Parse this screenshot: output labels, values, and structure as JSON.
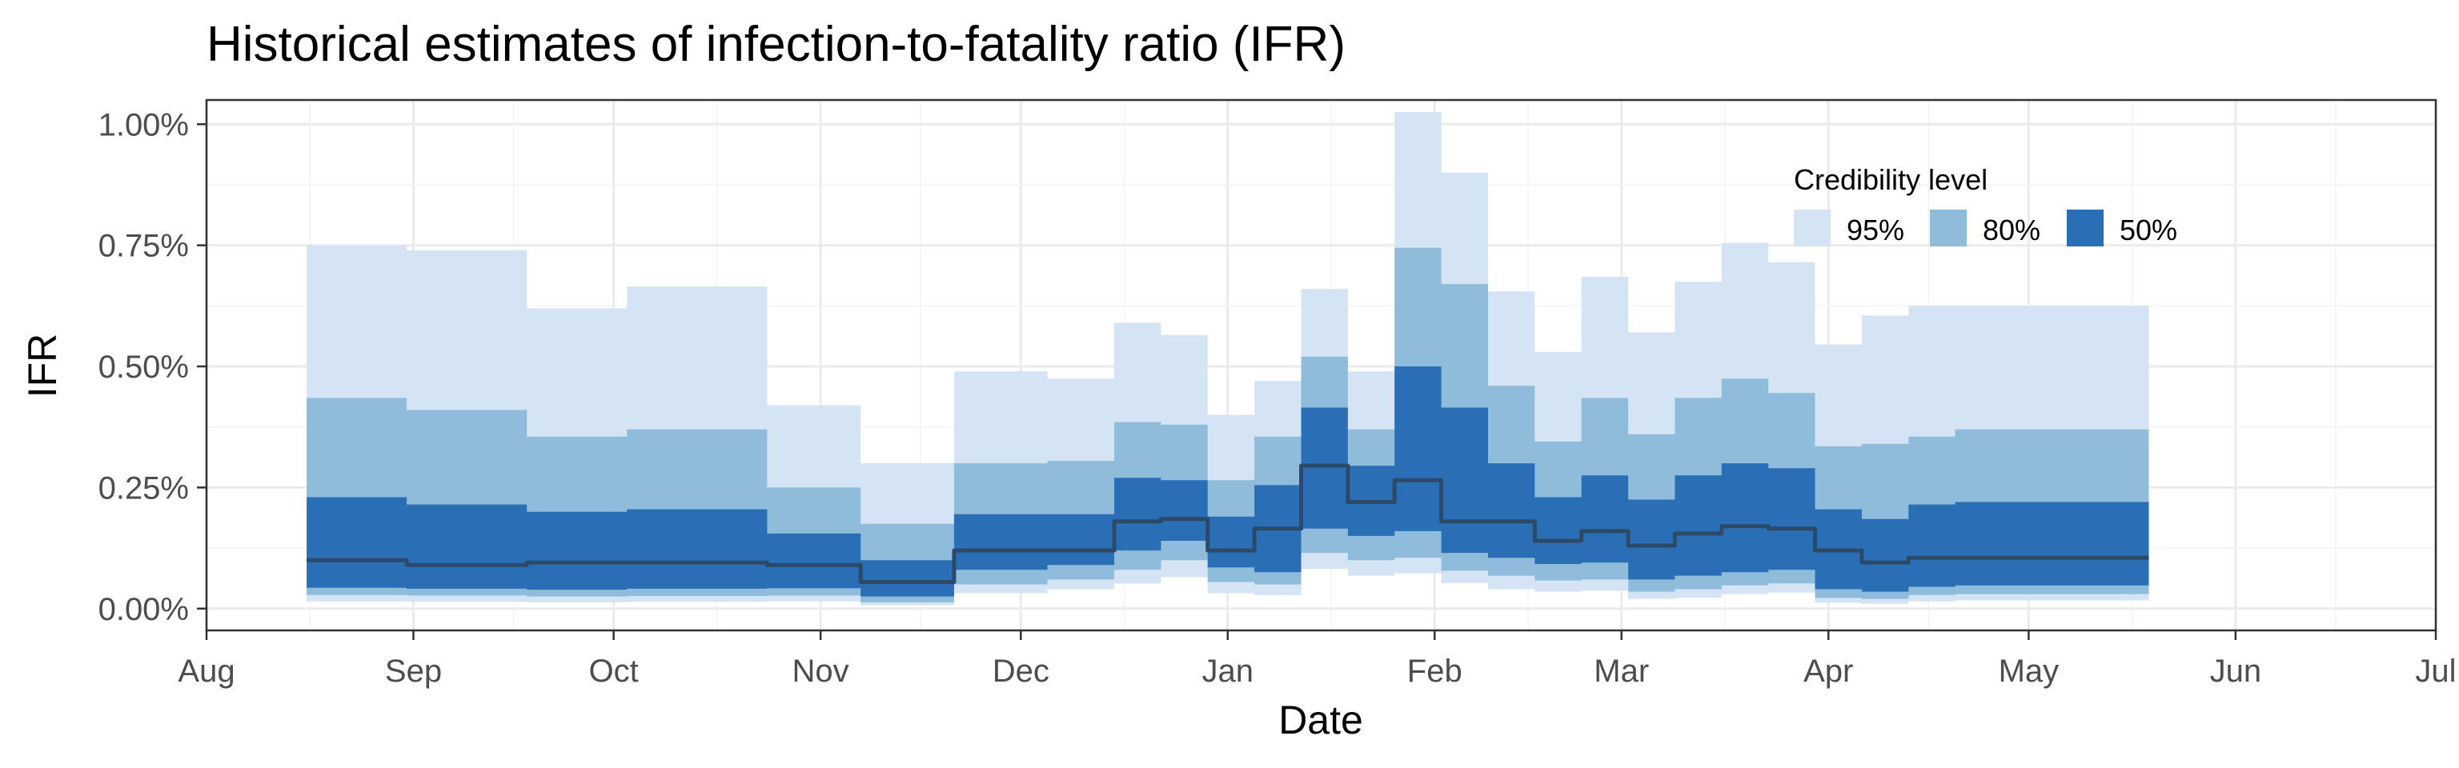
{
  "chart_data": {
    "type": "area",
    "title": "Historical estimates of infection-to-fatality ratio (IFR)",
    "xlabel": "Date",
    "ylabel": "IFR",
    "xlim": [
      "2020-08-01",
      "2021-07-01"
    ],
    "ylim": [
      -0.00045,
      0.0105
    ],
    "x_ticks": [
      {
        "date": "2020-08-01",
        "label": "Aug"
      },
      {
        "date": "2020-09-01",
        "label": "Sep"
      },
      {
        "date": "2020-10-01",
        "label": "Oct"
      },
      {
        "date": "2020-11-01",
        "label": "Nov"
      },
      {
        "date": "2020-12-01",
        "label": "Dec"
      },
      {
        "date": "2021-01-01",
        "label": "Jan"
      },
      {
        "date": "2021-02-01",
        "label": "Feb"
      },
      {
        "date": "2021-03-01",
        "label": "Mar"
      },
      {
        "date": "2021-04-01",
        "label": "Apr"
      },
      {
        "date": "2021-05-01",
        "label": "May"
      },
      {
        "date": "2021-06-01",
        "label": "Jun"
      },
      {
        "date": "2021-07-01",
        "label": "Jul"
      }
    ],
    "y_ticks": [
      {
        "value": 0,
        "label": "0.00%"
      },
      {
        "value": 0.0025,
        "label": "0.25%"
      },
      {
        "value": 0.005,
        "label": "0.50%"
      },
      {
        "value": 0.0075,
        "label": "0.75%"
      },
      {
        "value": 0.01,
        "label": "1.00%"
      }
    ],
    "grid": true,
    "legend": {
      "title": "Credibility level",
      "placement": "top-right",
      "entries": [
        {
          "label": "95%",
          "color": "#d5e4f4"
        },
        {
          "label": "80%",
          "color": "#8fbcdb"
        },
        {
          "label": "50%",
          "color": "#2a6fb5"
        }
      ]
    },
    "colors": {
      "band95": "#d5e4f4",
      "band80": "#8fbcdb",
      "band50": "#2a6fb5",
      "median": "#2c4a68",
      "panel_border": "#333333",
      "grid_major": "#ebebeb",
      "grid_minor": "#f3f3f3"
    },
    "x": [
      "2020-08-16",
      "2020-08-31",
      "2020-09-18",
      "2020-10-03",
      "2020-10-24",
      "2020-11-07",
      "2020-11-21",
      "2020-12-05",
      "2020-12-15",
      "2020-12-22",
      "2020-12-29",
      "2021-01-05",
      "2021-01-12",
      "2021-01-19",
      "2021-01-26",
      "2021-02-02",
      "2021-02-09",
      "2021-02-16",
      "2021-02-23",
      "2021-03-02",
      "2021-03-09",
      "2021-03-16",
      "2021-03-23",
      "2021-03-30",
      "2021-04-06",
      "2021-04-13",
      "2021-04-20",
      "2021-05-19"
    ],
    "bands": {
      "lo95": [
        0.00015,
        0.00014,
        0.00013,
        0.00014,
        0.00015,
        7e-05,
        0.00032,
        0.0004,
        0.00052,
        0.00065,
        0.00032,
        0.00028,
        0.00082,
        0.00068,
        0.00073,
        0.00053,
        0.0004,
        0.00035,
        0.00037,
        0.0002,
        0.00022,
        0.0003,
        0.00033,
        0.00012,
        0.0001,
        0.00015,
        0.00017,
        0.00017
      ],
      "lo80": [
        0.00028,
        0.00027,
        0.00025,
        0.00026,
        0.00027,
        0.00013,
        0.0005,
        0.0006,
        0.0008,
        0.001,
        0.00055,
        0.0005,
        0.00115,
        0.001,
        0.00105,
        0.00078,
        0.00068,
        0.00058,
        0.0006,
        0.00035,
        0.0004,
        0.00048,
        0.00052,
        0.00022,
        0.0002,
        0.00028,
        0.0003,
        0.0003
      ],
      "lo50": [
        0.00043,
        0.00041,
        0.00039,
        0.00041,
        0.00042,
        0.00025,
        0.0008,
        0.0009,
        0.0012,
        0.0014,
        0.00085,
        0.00075,
        0.00165,
        0.0015,
        0.0016,
        0.00115,
        0.00105,
        0.00092,
        0.00095,
        0.0006,
        0.00068,
        0.00075,
        0.0008,
        0.0004,
        0.00035,
        0.00045,
        0.00048,
        0.00048
      ],
      "median": [
        0.001,
        0.0009,
        0.00095,
        0.00095,
        0.0009,
        0.00055,
        0.0012,
        0.0012,
        0.0018,
        0.00185,
        0.0012,
        0.00165,
        0.00295,
        0.0022,
        0.00265,
        0.0018,
        0.0018,
        0.0014,
        0.0016,
        0.0013,
        0.00155,
        0.0017,
        0.00165,
        0.0012,
        0.00095,
        0.00105,
        0.00105,
        0.00105
      ],
      "hi50": [
        0.0023,
        0.00215,
        0.002,
        0.00205,
        0.00155,
        0.001,
        0.00195,
        0.00195,
        0.0027,
        0.00265,
        0.0019,
        0.00255,
        0.00415,
        0.00295,
        0.005,
        0.00415,
        0.003,
        0.0023,
        0.00275,
        0.00225,
        0.00275,
        0.003,
        0.0029,
        0.00205,
        0.00185,
        0.00215,
        0.0022,
        0.0022
      ],
      "hi80": [
        0.00435,
        0.0041,
        0.00355,
        0.0037,
        0.0025,
        0.00175,
        0.003,
        0.00305,
        0.00385,
        0.0038,
        0.00265,
        0.00355,
        0.0052,
        0.0037,
        0.00745,
        0.0067,
        0.0046,
        0.00345,
        0.00435,
        0.0036,
        0.00435,
        0.00475,
        0.00445,
        0.00335,
        0.0034,
        0.00355,
        0.0037,
        0.0037
      ],
      "hi95": [
        0.0075,
        0.0074,
        0.0062,
        0.00665,
        0.0042,
        0.003,
        0.0049,
        0.00475,
        0.0059,
        0.00565,
        0.004,
        0.0047,
        0.0066,
        0.0049,
        0.01025,
        0.009,
        0.00655,
        0.0053,
        0.00685,
        0.0057,
        0.00675,
        0.00755,
        0.00715,
        0.00545,
        0.00605,
        0.00625,
        0.00625,
        0.00625
      ]
    }
  }
}
